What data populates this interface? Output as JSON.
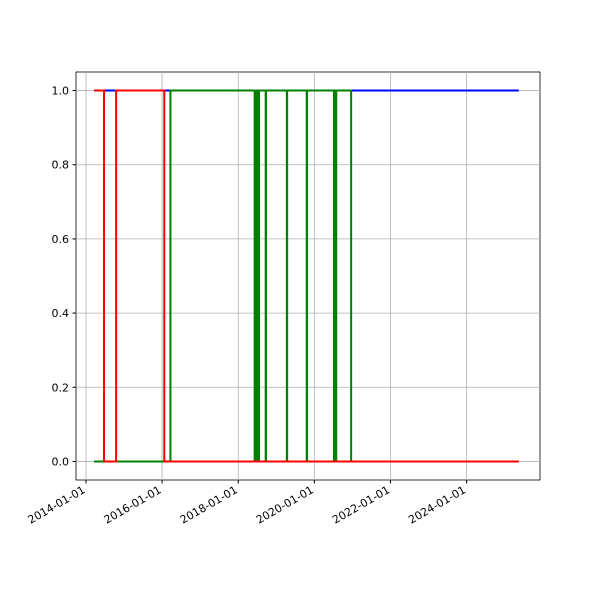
{
  "chart_data": {
    "type": "line",
    "xlim": [
      "2013-09-27",
      "2025-12-05"
    ],
    "xticks": [
      "2014-01-01",
      "2016-01-01",
      "2018-01-01",
      "2020-01-01",
      "2022-01-01",
      "2024-01-01"
    ],
    "ylim": [
      -0.05,
      1.05
    ],
    "yticks": [
      {
        "value": 0,
        "label": "0.0"
      },
      {
        "value": 0.2,
        "label": "0.2"
      },
      {
        "value": 0.4,
        "label": "0.4"
      },
      {
        "value": 0.6,
        "label": "0.6"
      },
      {
        "value": 0.8,
        "label": "0.8"
      },
      {
        "value": 1,
        "label": "1.0"
      }
    ],
    "grid": true,
    "series": [
      {
        "color": "#0000ff",
        "x": [
          "2014-03-19",
          "2025-05-15"
        ],
        "values": [
          1,
          1
        ]
      },
      {
        "color": "#008000",
        "x": [
          "2014-03-19",
          "2016-03-21",
          "2016-03-21",
          "2018-06-07",
          "2018-06-07",
          "2018-06-10",
          "2018-06-10",
          "2018-06-28",
          "2018-06-28",
          "2018-07-01",
          "2018-07-01",
          "2018-07-16",
          "2018-07-16",
          "2018-07-19",
          "2018-07-19",
          "2018-09-21",
          "2018-09-21",
          "2018-09-24",
          "2018-09-24",
          "2019-04-12",
          "2019-04-12",
          "2019-04-15",
          "2019-04-15",
          "2019-10-20",
          "2019-10-20",
          "2019-10-23",
          "2019-10-23",
          "2020-07-07",
          "2020-07-07",
          "2020-07-10",
          "2020-07-10",
          "2020-07-26",
          "2020-07-26",
          "2020-07-29",
          "2020-07-29",
          "2020-12-19",
          "2020-12-19",
          "2025-05-15"
        ],
        "values": [
          0,
          0,
          1,
          1,
          0,
          0,
          1,
          1,
          0,
          0,
          1,
          1,
          0,
          0,
          1,
          1,
          0,
          0,
          1,
          1,
          0,
          0,
          1,
          1,
          0,
          0,
          1,
          1,
          0,
          0,
          1,
          1,
          0,
          0,
          1,
          1,
          0,
          0
        ]
      },
      {
        "color": "#ff0000",
        "x": [
          "2014-03-19",
          "2014-06-23",
          "2014-06-23",
          "2014-10-17",
          "2014-10-17",
          "2016-01-22",
          "2016-01-22",
          "2025-05-15"
        ],
        "values": [
          1,
          1,
          0,
          0,
          1,
          1,
          0,
          0
        ]
      }
    ]
  }
}
